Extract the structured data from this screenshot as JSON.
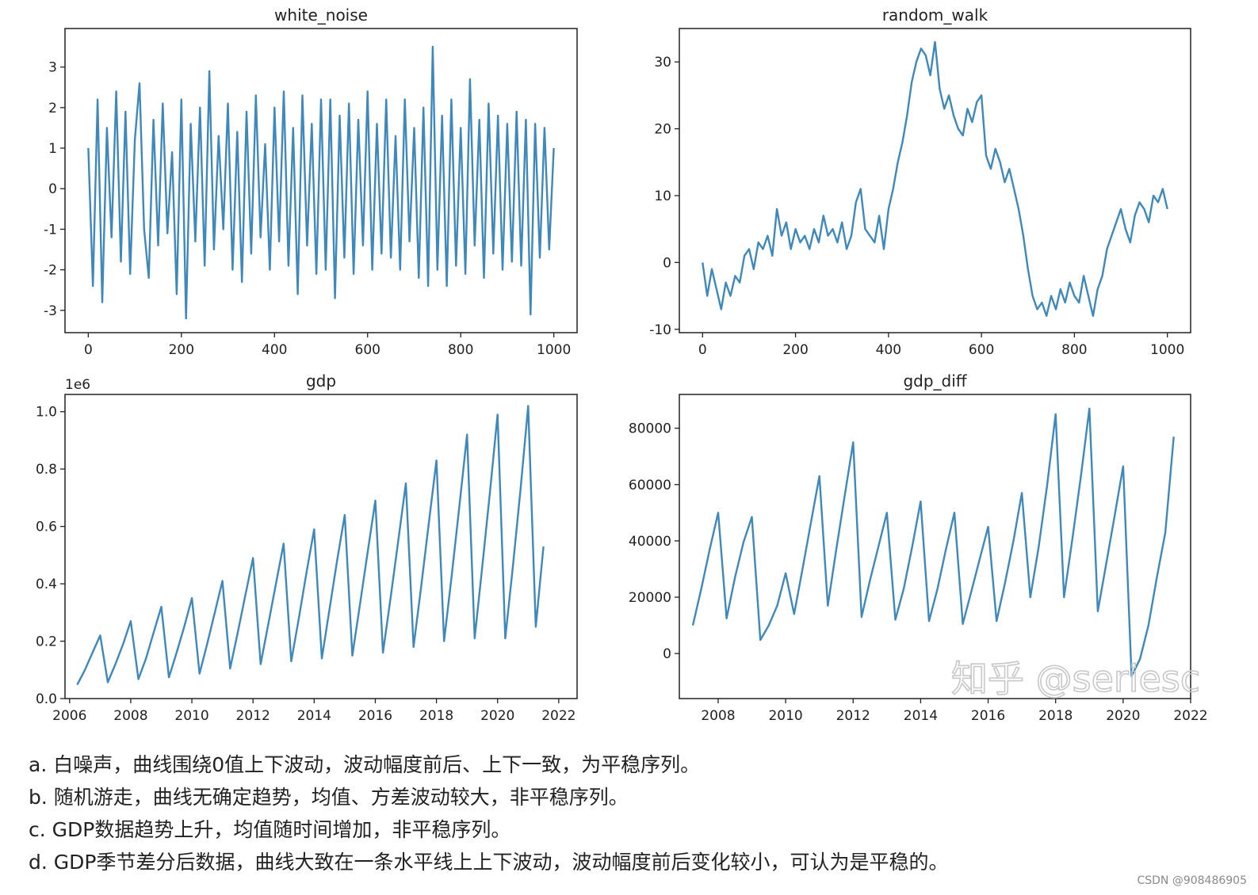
{
  "colors": {
    "line": "#3f88bb",
    "axis": "#222222",
    "text": "#222222",
    "watermark": "#c8c8c8"
  },
  "watermark": "知乎 @seriesc",
  "credit": "CSDN @908486905",
  "notes": [
    "a. 白噪声，曲线围绕0值上下波动，波动幅度前后、上下一致，为平稳序列。",
    "b. 随机游走，曲线无确定趋势，均值、方差波动较大，非平稳序列。",
    "c. GDP数据趋势上升，均值随时间增加，非平稳序列。",
    "d. GDP季节差分后数据，曲线大致在一条水平线上上下波动，波动幅度前后变化较小，可认为是平稳的。"
  ],
  "chart_data": [
    {
      "type": "line",
      "title": "white_noise",
      "xlim": [
        -50,
        1050
      ],
      "ylim": [
        -3.55,
        3.95
      ],
      "xticks": [
        0,
        200,
        400,
        600,
        800,
        1000
      ],
      "xtick_labels": [
        "0",
        "200",
        "400",
        "600",
        "800",
        "1000"
      ],
      "yticks": [
        -3,
        -2,
        -1,
        0,
        1,
        2,
        3
      ],
      "ytick_labels": [
        "-3",
        "-2",
        "-1",
        "0",
        "1",
        "2",
        "3"
      ],
      "offset_label": "",
      "series": [
        {
          "x": [
            0,
            10,
            20,
            30,
            40,
            50,
            60,
            70,
            80,
            90,
            100,
            110,
            120,
            130,
            140,
            150,
            160,
            170,
            180,
            190,
            200,
            210,
            220,
            230,
            240,
            250,
            260,
            270,
            280,
            290,
            300,
            310,
            320,
            330,
            340,
            350,
            360,
            370,
            380,
            390,
            400,
            410,
            420,
            430,
            440,
            450,
            460,
            470,
            480,
            490,
            500,
            510,
            520,
            530,
            540,
            550,
            560,
            570,
            580,
            590,
            600,
            610,
            620,
            630,
            640,
            650,
            660,
            670,
            680,
            690,
            700,
            710,
            720,
            730,
            740,
            750,
            760,
            770,
            780,
            790,
            800,
            810,
            820,
            830,
            840,
            850,
            860,
            870,
            880,
            890,
            900,
            910,
            920,
            930,
            940,
            950,
            960,
            970,
            980,
            990,
            1000
          ],
          "y": [
            1.0,
            -2.4,
            2.2,
            -2.8,
            1.5,
            -1.2,
            2.4,
            -1.8,
            1.9,
            -2.1,
            1.2,
            2.6,
            -1.0,
            -2.2,
            1.7,
            -1.4,
            2.1,
            -1.1,
            0.9,
            -2.6,
            2.2,
            -3.2,
            1.6,
            -1.3,
            2.0,
            -1.9,
            2.9,
            -1.5,
            1.3,
            -1.0,
            2.1,
            -2.0,
            1.4,
            -2.3,
            1.9,
            -1.6,
            2.3,
            -1.2,
            1.1,
            -2.0,
            2.0,
            -1.3,
            2.4,
            -1.9,
            1.5,
            -2.6,
            2.3,
            -1.4,
            1.6,
            -2.1,
            2.2,
            -2.0,
            2.2,
            -2.7,
            1.8,
            -1.7,
            2.1,
            -2.1,
            1.7,
            -1.4,
            2.4,
            -2.0,
            1.6,
            -1.6,
            2.2,
            -1.7,
            1.3,
            -2.0,
            2.2,
            -1.3,
            1.5,
            -2.2,
            2.0,
            -2.4,
            3.5,
            -2.0,
            1.8,
            -2.4,
            2.2,
            -1.9,
            1.5,
            -2.1,
            2.7,
            -1.4,
            1.7,
            -2.2,
            2.1,
            -1.6,
            1.8,
            -2.0,
            1.6,
            -1.8,
            1.9,
            -1.9,
            1.7,
            -3.1,
            1.6,
            -1.7,
            1.5,
            -1.5,
            1.0
          ]
        }
      ]
    },
    {
      "type": "line",
      "title": "random_walk",
      "xlim": [
        -50,
        1050
      ],
      "ylim": [
        -10.5,
        35
      ],
      "xticks": [
        0,
        200,
        400,
        600,
        800,
        1000
      ],
      "xtick_labels": [
        "0",
        "200",
        "400",
        "600",
        "800",
        "1000"
      ],
      "yticks": [
        -10,
        0,
        10,
        20,
        30
      ],
      "ytick_labels": [
        "-10",
        "0",
        "10",
        "20",
        "30"
      ],
      "offset_label": "",
      "series": [
        {
          "x": [
            0,
            10,
            20,
            30,
            40,
            50,
            60,
            70,
            80,
            90,
            100,
            110,
            120,
            130,
            140,
            150,
            160,
            170,
            180,
            190,
            200,
            210,
            220,
            230,
            240,
            250,
            260,
            270,
            280,
            290,
            300,
            310,
            320,
            330,
            340,
            350,
            360,
            370,
            380,
            390,
            400,
            410,
            420,
            430,
            440,
            450,
            460,
            470,
            480,
            490,
            500,
            510,
            520,
            530,
            540,
            550,
            560,
            570,
            580,
            590,
            600,
            610,
            620,
            630,
            640,
            650,
            660,
            670,
            680,
            690,
            700,
            710,
            720,
            730,
            740,
            750,
            760,
            770,
            780,
            790,
            800,
            810,
            820,
            830,
            840,
            850,
            860,
            870,
            880,
            890,
            900,
            910,
            920,
            930,
            940,
            950,
            960,
            970,
            980,
            990,
            1000
          ],
          "y": [
            0,
            -5,
            -1,
            -4,
            -7,
            -3,
            -5,
            -2,
            -3,
            1,
            2,
            -1,
            3,
            2,
            4,
            1,
            8,
            4,
            6,
            2,
            5,
            3,
            4,
            2,
            5,
            3,
            7,
            4,
            5,
            3,
            6,
            2,
            4,
            9,
            11,
            5,
            4,
            3,
            7,
            2,
            8,
            11,
            15,
            18,
            22,
            27,
            30,
            32,
            31,
            28,
            33,
            26,
            23,
            25,
            22,
            20,
            19,
            23,
            21,
            24,
            25,
            16,
            14,
            17,
            15,
            12,
            14,
            11,
            8,
            4,
            -1,
            -5,
            -7,
            -6,
            -8,
            -5,
            -7,
            -4,
            -6,
            -3,
            -5,
            -6,
            -2,
            -5,
            -8,
            -4,
            -2,
            2,
            4,
            6,
            8,
            5,
            3,
            7,
            9,
            8,
            6,
            10,
            9,
            11,
            8
          ]
        }
      ]
    },
    {
      "type": "line",
      "title": "gdp",
      "xlim": [
        2005.85,
        2022.6
      ],
      "ylim": [
        0,
        1.06
      ],
      "xticks": [
        2006,
        2008,
        2010,
        2012,
        2014,
        2016,
        2018,
        2020,
        2022
      ],
      "xtick_labels": [
        "2006",
        "2008",
        "2010",
        "2012",
        "2014",
        "2016",
        "2018",
        "2020",
        "2022"
      ],
      "yticks": [
        0.0,
        0.2,
        0.4,
        0.6,
        0.8,
        1.0
      ],
      "ytick_labels": [
        "0.0",
        "0.2",
        "0.4",
        "0.6",
        "0.8",
        "1.0"
      ],
      "offset_label": "1e6",
      "series": [
        {
          "x": [
            2006.25,
            2006.5,
            2006.75,
            2007.0,
            2007.25,
            2007.5,
            2007.75,
            2008.0,
            2008.25,
            2008.5,
            2008.75,
            2009.0,
            2009.25,
            2009.5,
            2009.75,
            2010.0,
            2010.25,
            2010.5,
            2010.75,
            2011.0,
            2011.25,
            2011.5,
            2011.75,
            2012.0,
            2012.25,
            2012.5,
            2012.75,
            2013.0,
            2013.25,
            2013.5,
            2013.75,
            2014.0,
            2014.25,
            2014.5,
            2014.75,
            2015.0,
            2015.25,
            2015.5,
            2015.75,
            2016.0,
            2016.25,
            2016.5,
            2016.75,
            2017.0,
            2017.25,
            2017.5,
            2017.75,
            2018.0,
            2018.25,
            2018.5,
            2018.75,
            2019.0,
            2019.25,
            2019.5,
            2019.75,
            2020.0,
            2020.25,
            2020.5,
            2020.75,
            2021.0,
            2021.25,
            2021.5
          ],
          "y": [
            0.048,
            0.1,
            0.16,
            0.22,
            0.057,
            0.12,
            0.19,
            0.27,
            0.068,
            0.14,
            0.23,
            0.32,
            0.074,
            0.16,
            0.25,
            0.35,
            0.087,
            0.19,
            0.3,
            0.41,
            0.105,
            0.23,
            0.36,
            0.49,
            0.12,
            0.26,
            0.4,
            0.54,
            0.13,
            0.28,
            0.44,
            0.59,
            0.14,
            0.31,
            0.48,
            0.64,
            0.15,
            0.33,
            0.51,
            0.69,
            0.16,
            0.35,
            0.55,
            0.75,
            0.18,
            0.39,
            0.61,
            0.83,
            0.2,
            0.43,
            0.67,
            0.92,
            0.21,
            0.46,
            0.72,
            0.99,
            0.21,
            0.46,
            0.73,
            1.02,
            0.25,
            0.53
          ]
        }
      ]
    },
    {
      "type": "line",
      "title": "gdp_diff",
      "xlim": [
        2006.85,
        2022.0
      ],
      "ylim": [
        -16000,
        92000
      ],
      "xticks": [
        2008,
        2010,
        2012,
        2014,
        2016,
        2018,
        2020,
        2022
      ],
      "xtick_labels": [
        "2008",
        "2010",
        "2012",
        "2014",
        "2016",
        "2018",
        "2020",
        "2022"
      ],
      "yticks": [
        0,
        20000,
        40000,
        60000,
        80000
      ],
      "ytick_labels": [
        "0",
        "20000",
        "40000",
        "60000",
        "80000"
      ],
      "offset_label": "",
      "series": [
        {
          "x": [
            2007.25,
            2007.5,
            2007.75,
            2008.0,
            2008.25,
            2008.5,
            2008.75,
            2009.0,
            2009.25,
            2009.5,
            2009.75,
            2010.0,
            2010.25,
            2010.5,
            2010.75,
            2011.0,
            2011.25,
            2011.5,
            2011.75,
            2012.0,
            2012.25,
            2012.5,
            2012.75,
            2013.0,
            2013.25,
            2013.5,
            2013.75,
            2014.0,
            2014.25,
            2014.5,
            2014.75,
            2015.0,
            2015.25,
            2015.5,
            2015.75,
            2016.0,
            2016.25,
            2016.5,
            2016.75,
            2017.0,
            2017.25,
            2017.5,
            2017.75,
            2018.0,
            2018.25,
            2018.5,
            2018.75,
            2019.0,
            2019.25,
            2019.5,
            2019.75,
            2020.0,
            2020.25,
            2020.5,
            2020.75,
            2021.0,
            2021.25,
            2021.5
          ],
          "y": [
            10000,
            23000,
            37000,
            50000,
            12500,
            27000,
            39500,
            48500,
            4800,
            10000,
            17000,
            28500,
            14000,
            30000,
            46500,
            63000,
            17000,
            37000,
            56000,
            75000,
            13000,
            26000,
            38000,
            50000,
            12000,
            23000,
            38000,
            54000,
            11500,
            23000,
            37000,
            50000,
            10500,
            22000,
            33500,
            45000,
            11500,
            25000,
            40000,
            57000,
            20000,
            38000,
            60000,
            85000,
            20000,
            41000,
            63000,
            87000,
            15000,
            32000,
            49000,
            66500,
            -8000,
            -2000,
            10000,
            27000,
            43000,
            77000
          ]
        }
      ]
    }
  ]
}
